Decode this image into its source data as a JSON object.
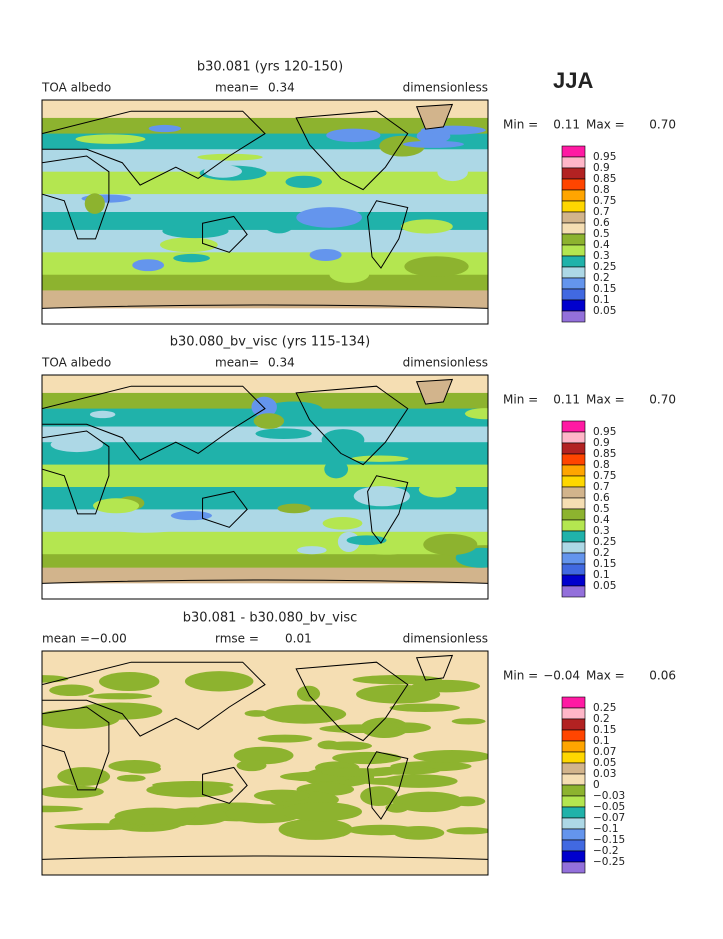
{
  "header": "JJA",
  "colorbar_colors": [
    "#ff1aa3",
    "#ffb6c8",
    "#b22222",
    "#ff4500",
    "#ffa500",
    "#ffd700",
    "#d2b48c",
    "#f5deb3",
    "#8db32f",
    "#b4e650",
    "#20b2aa",
    "#add8e6",
    "#6495ed",
    "#4169e1",
    "#0000cd",
    "#9370db"
  ],
  "panels": [
    {
      "title": "b30.081 (yrs 120-150)",
      "left": "TOA albedo",
      "stat1_label": "mean=",
      "stat1_value": "0.34",
      "right": "dimensionless",
      "min_label": "Min =",
      "min_value": "0.11",
      "max_label": "Max =",
      "max_value": "0.70",
      "levels": [
        "0.95",
        "0.9",
        "0.85",
        "0.8",
        "0.75",
        "0.7",
        "0.6",
        "0.5",
        "0.4",
        "0.3",
        "0.25",
        "0.2",
        "0.15",
        "0.1",
        "0.05"
      ]
    },
    {
      "title": "b30.080_bv_visc (yrs 115-134)",
      "left": "TOA albedo",
      "stat1_label": "mean=",
      "stat1_value": "0.34",
      "right": "dimensionless",
      "min_label": "Min =",
      "min_value": "0.11",
      "max_label": "Max =",
      "max_value": "0.70",
      "levels": [
        "0.95",
        "0.9",
        "0.85",
        "0.8",
        "0.75",
        "0.7",
        "0.6",
        "0.5",
        "0.4",
        "0.3",
        "0.25",
        "0.2",
        "0.15",
        "0.1",
        "0.05"
      ]
    },
    {
      "title": "b30.081 - b30.080_bv_visc",
      "stat1_label": "mean =",
      "stat1_value": "−0.00",
      "stat2_label": "rmse =",
      "stat2_value": "0.01",
      "right": "dimensionless",
      "min_label": "Min =",
      "min_value": "−0.04",
      "max_label": "Max =",
      "max_value": "0.06",
      "levels": [
        "0.25",
        "0.2",
        "0.15",
        "0.1",
        "0.07",
        "0.05",
        "0.03",
        "0",
        "−0.03",
        "−0.05",
        "−0.07",
        "−0.1",
        "−0.15",
        "−0.2",
        "−0.25"
      ]
    }
  ]
}
